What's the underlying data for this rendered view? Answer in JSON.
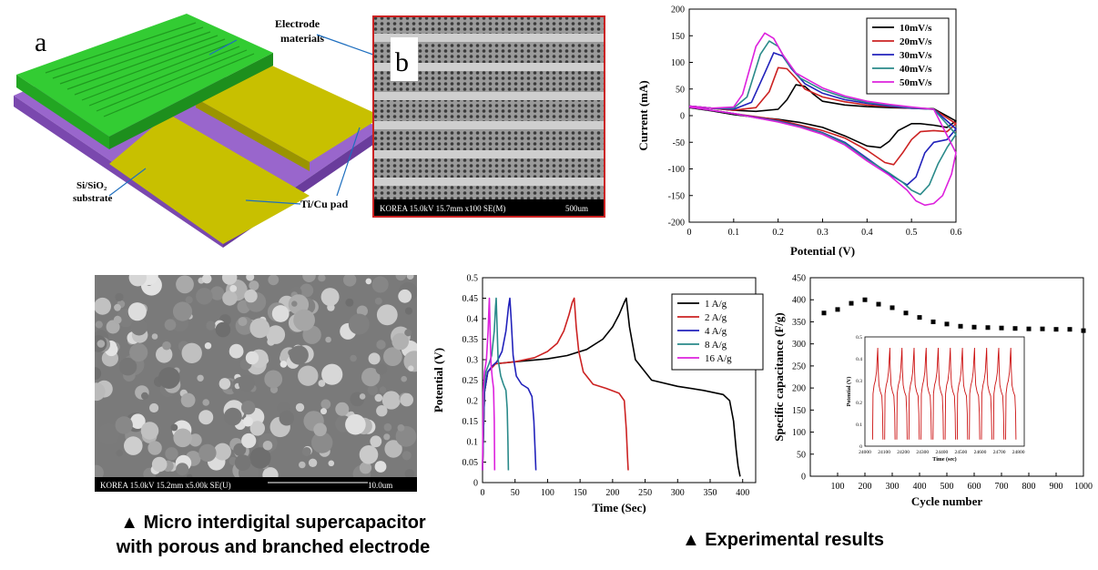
{
  "device": {
    "panel_a_letter": "a",
    "panel_b_letter": "b",
    "label_electrode": [
      "Electrode",
      "materials"
    ],
    "label_substrate": [
      "Si/SiO₂",
      "substrate"
    ],
    "label_pad": "Ti/Cu pad",
    "sem_b_info": "KOREA 15.0kV 15.7mm x100 SE(M)",
    "sem_b_scale": "500um",
    "sem_c_info": "KOREA 15.0kV 15.2mm x5.00k SE(U)",
    "sem_c_scale": "10.0um"
  },
  "captions": {
    "left_line1": "▲ Micro interdigital supercapacitor",
    "left_line2": "with porous and branched electrode",
    "right": "▲ Experimental results"
  },
  "chart_data": [
    {
      "id": "cv",
      "type": "line",
      "xlabel": "Potential (V)",
      "ylabel": "Current (mA)",
      "xlim": [
        0.0,
        0.6
      ],
      "ylim": [
        -200,
        200
      ],
      "xticks": [
        0.0,
        0.1,
        0.2,
        0.3,
        0.4,
        0.5,
        0.6
      ],
      "yticks": [
        -200,
        -150,
        -100,
        -50,
        0,
        50,
        100,
        150,
        200
      ],
      "legend_position": "top-right",
      "series": [
        {
          "name": "10mV/s",
          "color": "#000000",
          "x": [
            0.0,
            0.05,
            0.1,
            0.15,
            0.2,
            0.22,
            0.24,
            0.26,
            0.28,
            0.3,
            0.35,
            0.4,
            0.45,
            0.5,
            0.55,
            0.6,
            0.58,
            0.55,
            0.52,
            0.5,
            0.47,
            0.45,
            0.43,
            0.4,
            0.35,
            0.3,
            0.25,
            0.2,
            0.15,
            0.1,
            0.05,
            0.0
          ],
          "y": [
            18,
            14,
            10,
            8,
            12,
            30,
            58,
            55,
            40,
            27,
            20,
            17,
            15,
            14,
            13,
            -10,
            -22,
            -18,
            -15,
            -15,
            -28,
            -48,
            -60,
            -57,
            -38,
            -22,
            -13,
            -7,
            -3,
            2,
            9,
            15
          ]
        },
        {
          "name": "20mV/s",
          "color": "#cc2222",
          "x": [
            0.0,
            0.05,
            0.1,
            0.15,
            0.18,
            0.2,
            0.22,
            0.24,
            0.26,
            0.3,
            0.35,
            0.4,
            0.45,
            0.5,
            0.55,
            0.6,
            0.58,
            0.55,
            0.52,
            0.5,
            0.48,
            0.46,
            0.44,
            0.4,
            0.35,
            0.3,
            0.25,
            0.2,
            0.15,
            0.1,
            0.05,
            0.0
          ],
          "y": [
            18,
            14,
            10,
            15,
            45,
            90,
            88,
            70,
            50,
            35,
            26,
            20,
            17,
            14,
            12,
            -15,
            -30,
            -28,
            -30,
            -45,
            -70,
            -92,
            -88,
            -65,
            -42,
            -28,
            -18,
            -8,
            -2,
            4,
            10,
            16
          ]
        },
        {
          "name": "30mV/s",
          "color": "#2222bb",
          "x": [
            0.0,
            0.05,
            0.1,
            0.14,
            0.17,
            0.19,
            0.21,
            0.23,
            0.26,
            0.3,
            0.35,
            0.4,
            0.45,
            0.5,
            0.55,
            0.6,
            0.58,
            0.55,
            0.53,
            0.51,
            0.49,
            0.47,
            0.45,
            0.4,
            0.35,
            0.3,
            0.25,
            0.2,
            0.15,
            0.1,
            0.05,
            0.0
          ],
          "y": [
            18,
            14,
            12,
            25,
            80,
            118,
            112,
            88,
            60,
            42,
            30,
            23,
            18,
            14,
            12,
            -25,
            -45,
            -50,
            -70,
            -115,
            -130,
            -120,
            -110,
            -80,
            -50,
            -32,
            -20,
            -10,
            -3,
            4,
            10,
            16
          ]
        },
        {
          "name": "40mV/s",
          "color": "#2a8a8a",
          "x": [
            0.0,
            0.05,
            0.1,
            0.13,
            0.16,
            0.18,
            0.2,
            0.22,
            0.25,
            0.3,
            0.35,
            0.4,
            0.45,
            0.5,
            0.55,
            0.6,
            0.58,
            0.56,
            0.54,
            0.52,
            0.5,
            0.48,
            0.45,
            0.4,
            0.35,
            0.3,
            0.25,
            0.2,
            0.15,
            0.1,
            0.05,
            0.0
          ],
          "y": [
            18,
            14,
            14,
            35,
            115,
            140,
            130,
            100,
            70,
            48,
            34,
            25,
            20,
            15,
            12,
            -35,
            -60,
            -90,
            -130,
            -148,
            -140,
            -125,
            -108,
            -82,
            -52,
            -33,
            -21,
            -11,
            -4,
            4,
            10,
            16
          ]
        },
        {
          "name": "50mV/s",
          "color": "#dd22dd",
          "x": [
            0.0,
            0.05,
            0.1,
            0.12,
            0.15,
            0.17,
            0.19,
            0.21,
            0.24,
            0.3,
            0.35,
            0.4,
            0.45,
            0.5,
            0.55,
            0.6,
            0.59,
            0.57,
            0.55,
            0.53,
            0.51,
            0.49,
            0.45,
            0.4,
            0.35,
            0.3,
            0.25,
            0.2,
            0.15,
            0.1,
            0.05,
            0.0
          ],
          "y": [
            18,
            14,
            16,
            40,
            130,
            155,
            145,
            115,
            80,
            52,
            37,
            27,
            21,
            16,
            12,
            -70,
            -110,
            -150,
            -165,
            -168,
            -160,
            -140,
            -112,
            -85,
            -55,
            -35,
            -22,
            -12,
            -4,
            4,
            10,
            16
          ]
        }
      ]
    },
    {
      "id": "gcd",
      "type": "line",
      "xlabel": "Time (Sec)",
      "ylabel": "Potential (V)",
      "xlim": [
        0,
        420
      ],
      "ylim": [
        0.0,
        0.5
      ],
      "xticks": [
        0,
        50,
        100,
        150,
        200,
        250,
        300,
        350,
        400
      ],
      "yticks": [
        0.0,
        0.05,
        0.1,
        0.15,
        0.2,
        0.25,
        0.3,
        0.35,
        0.4,
        0.45,
        0.5
      ],
      "legend_position": "top-right",
      "series": [
        {
          "name": "1 A/g",
          "color": "#000000",
          "x": [
            0,
            3,
            8,
            20,
            50,
            100,
            130,
            160,
            185,
            200,
            210,
            218,
            221,
            226,
            235,
            260,
            300,
            340,
            370,
            380,
            386,
            390,
            393,
            396
          ],
          "y": [
            0.03,
            0.22,
            0.27,
            0.29,
            0.295,
            0.302,
            0.31,
            0.325,
            0.35,
            0.38,
            0.41,
            0.44,
            0.45,
            0.38,
            0.3,
            0.25,
            0.235,
            0.225,
            0.215,
            0.2,
            0.15,
            0.08,
            0.04,
            0.015
          ]
        },
        {
          "name": "2 A/g",
          "color": "#cc2222",
          "x": [
            0,
            3,
            8,
            20,
            50,
            80,
            100,
            115,
            125,
            133,
            138,
            141,
            144,
            148,
            155,
            170,
            190,
            210,
            218,
            221,
            223,
            224
          ],
          "y": [
            0.03,
            0.22,
            0.27,
            0.29,
            0.295,
            0.305,
            0.32,
            0.34,
            0.37,
            0.41,
            0.44,
            0.45,
            0.38,
            0.32,
            0.27,
            0.24,
            0.23,
            0.218,
            0.2,
            0.13,
            0.06,
            0.03
          ]
        },
        {
          "name": "4 A/g",
          "color": "#2222bb",
          "x": [
            0,
            3,
            8,
            15,
            22,
            30,
            36,
            40,
            42,
            44,
            47,
            52,
            60,
            70,
            76,
            79,
            81,
            82
          ],
          "y": [
            0.03,
            0.22,
            0.27,
            0.285,
            0.295,
            0.32,
            0.37,
            0.43,
            0.45,
            0.4,
            0.31,
            0.26,
            0.24,
            0.23,
            0.21,
            0.15,
            0.07,
            0.03
          ]
        },
        {
          "name": "8 A/g",
          "color": "#2a8a8a",
          "x": [
            0,
            2,
            5,
            10,
            14,
            18,
            20,
            21,
            22,
            24,
            28,
            32,
            36,
            38,
            39,
            39.8
          ],
          "y": [
            0.03,
            0.22,
            0.27,
            0.29,
            0.31,
            0.37,
            0.43,
            0.45,
            0.4,
            0.3,
            0.26,
            0.24,
            0.225,
            0.18,
            0.1,
            0.03
          ]
        },
        {
          "name": "16 A/g",
          "color": "#dd22dd",
          "x": [
            0,
            1,
            3,
            6,
            8.5,
            10,
            10.5,
            11.5,
            13,
            15,
            17,
            18,
            18.6
          ],
          "y": [
            0.03,
            0.22,
            0.27,
            0.3,
            0.37,
            0.43,
            0.45,
            0.38,
            0.29,
            0.255,
            0.23,
            0.15,
            0.03
          ]
        }
      ]
    },
    {
      "id": "cycle",
      "type": "scatter",
      "xlabel": "Cycle number",
      "ylabel": "Specific capacitance (F/g)",
      "xlim": [
        0,
        1000
      ],
      "ylim": [
        0,
        450
      ],
      "xticks": [
        100,
        200,
        300,
        400,
        500,
        600,
        700,
        800,
        900,
        1000
      ],
      "yticks": [
        0,
        50,
        100,
        150,
        200,
        250,
        300,
        350,
        400,
        450
      ],
      "series": [
        {
          "name": "",
          "color": "#000000",
          "x": [
            50,
            100,
            150,
            200,
            250,
            300,
            350,
            400,
            450,
            500,
            550,
            600,
            650,
            700,
            750,
            800,
            850,
            900,
            950,
            1000
          ],
          "y": [
            370,
            378,
            392,
            400,
            390,
            382,
            370,
            360,
            350,
            345,
            340,
            338,
            337,
            336,
            335,
            334,
            334,
            333,
            333,
            330
          ]
        }
      ],
      "inset": {
        "type": "line",
        "xlabel": "Time (sec)",
        "ylabel": "Potential (V)",
        "xlim": [
          24000,
          24830
        ],
        "ylim": [
          0.0,
          0.5
        ],
        "xticks": [
          24000,
          24100,
          24200,
          24300,
          24400,
          24500,
          24600,
          24700,
          24800
        ],
        "yticks": [
          0.0,
          0.1,
          0.2,
          0.3,
          0.4,
          0.5
        ],
        "color": "#cc1111",
        "cycle_starts": [
          24040,
          24103,
          24166,
          24229,
          24292,
          24355,
          24418,
          24481,
          24544,
          24607,
          24670,
          24733
        ]
      }
    }
  ]
}
